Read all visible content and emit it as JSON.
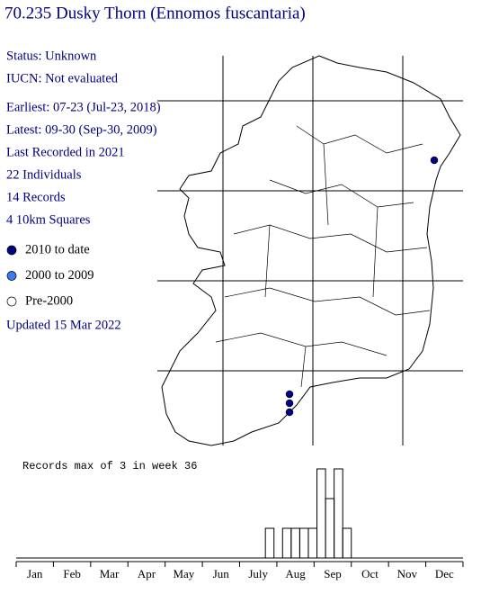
{
  "title": "70.235 Dusky Thorn (Ennomos fuscantaria)",
  "info": [
    "Status: Unknown",
    "IUCN: Not evaluated",
    "Earliest: 07-23 (Jul-23, 2018)",
    "Latest: 09-30 (Sep-30, 2009)",
    "Last Recorded in 2021",
    "22 Individuals",
    "14 Records",
    "4 10km Squares"
  ],
  "legend": [
    {
      "label": "2010 to date",
      "color": "#000080"
    },
    {
      "label": "2000 to 2009",
      "color": "#3a7bf0"
    },
    {
      "label": "Pre-2000",
      "color": "#ffffff"
    }
  ],
  "updated": "Updated 15 Mar 2022",
  "map": {
    "points": [
      {
        "easting_km": 335,
        "northing_km": 334,
        "color": "#000080"
      },
      {
        "easting_km": 174,
        "northing_km": 74,
        "color": "#000080"
      },
      {
        "easting_km": 174,
        "northing_km": 64,
        "color": "#000080"
      },
      {
        "easting_km": 174,
        "northing_km": 54,
        "color": "#000080"
      }
    ]
  },
  "chart_data": {
    "type": "histogram",
    "title": "Records max of 3 in week 36",
    "x": [
      30,
      32,
      33,
      34,
      35,
      36,
      37,
      38,
      39
    ],
    "values": [
      1,
      1,
      1,
      1,
      1,
      3,
      2,
      3,
      1
    ],
    "xlim": [
      1,
      53
    ],
    "ylim": [
      0,
      3
    ],
    "months": [
      "Jan",
      "Feb",
      "Mar",
      "Apr",
      "May",
      "Jun",
      "July",
      "Aug",
      "Sep",
      "Oct",
      "Nov",
      "Dec"
    ]
  }
}
